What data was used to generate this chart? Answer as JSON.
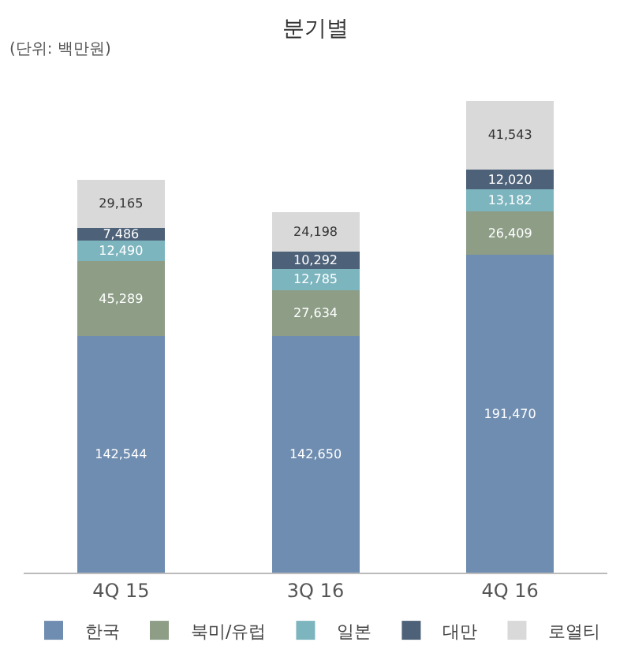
{
  "chart_data": {
    "type": "bar",
    "stacked": true,
    "title": "분기별",
    "annotations": [
      "(단위: 백만원)"
    ],
    "categories": [
      "4Q 15",
      "3Q 16",
      "4Q 16"
    ],
    "series": [
      {
        "name": "한국",
        "color": "#6f8db0",
        "values": [
          142544,
          142650,
          191470
        ],
        "value_labels": [
          "142,544",
          "142,650",
          "191,470"
        ]
      },
      {
        "name": "북미/유럽",
        "color": "#8d9d86",
        "values": [
          45289,
          27634,
          26409
        ],
        "value_labels": [
          "45,289",
          "27,634",
          "26,409"
        ]
      },
      {
        "name": "일본",
        "color": "#7db5bf",
        "values": [
          12490,
          12785,
          13182
        ],
        "value_labels": [
          "12,490",
          "12,785",
          "13,182"
        ]
      },
      {
        "name": "대만",
        "color": "#4d6178",
        "values": [
          7486,
          10292,
          12020
        ],
        "value_labels": [
          "7,486",
          "10,292",
          "12,020"
        ]
      },
      {
        "name": "로열티",
        "color": "#d9d9d9",
        "values": [
          29165,
          24198,
          41543
        ],
        "value_labels": [
          "29,165",
          "24,198",
          "41,543"
        ]
      }
    ],
    "legend": "bottom",
    "tick_labels": "x"
  }
}
